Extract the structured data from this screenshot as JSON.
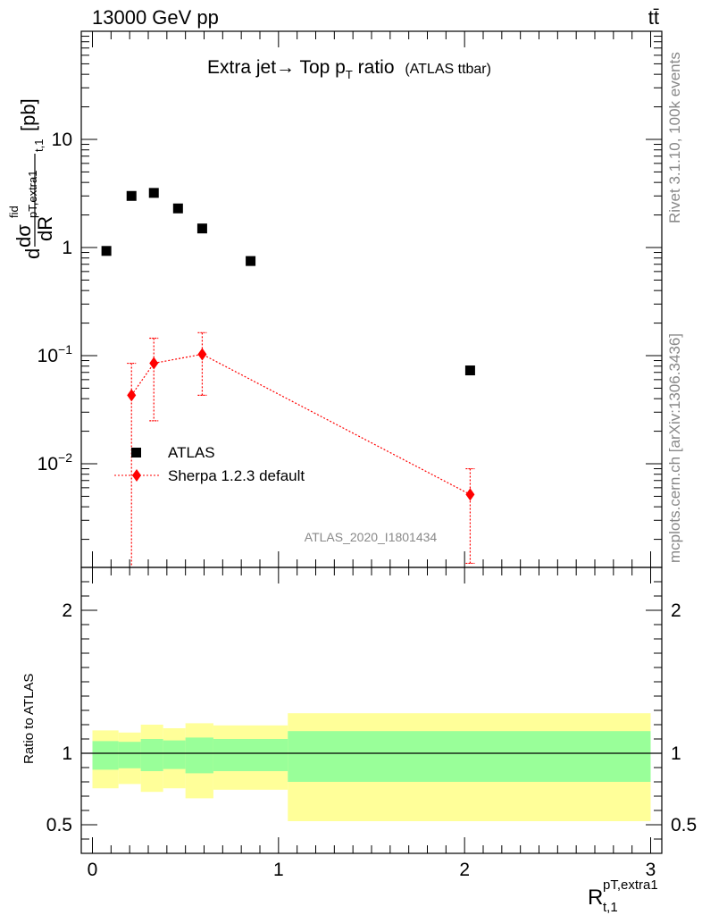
{
  "header": {
    "left": "13000 GeV pp",
    "right": "tt̄"
  },
  "side": {
    "rivet": "Rivet 3.1.10,  100k events",
    "mcplots": "mcplots.cern.ch [arXiv:1306.3436]"
  },
  "main": {
    "title": "Extra jet",
    "title_arrow": "→",
    "title_mid": " Top p",
    "title_sub": "T",
    "title_end": " ratio",
    "title_tag": "(ATLAS ttbar)",
    "ylabel_d1": "d",
    "ylabel_sigma": "dσ",
    "ylabel_fid": "fid",
    "ylabel_ptsub": "pT,extra1",
    "ylabel_t1": "t,1",
    "ylabel_dR": "dR",
    "ylabel_unit": "[pb]",
    "analysis": "ATLAS_2020_I1801434",
    "yticks": [
      {
        "label": "10",
        "exp": "",
        "value": 10
      },
      {
        "label": "1",
        "exp": "",
        "value": 1
      },
      {
        "label": "10",
        "exp": "−1",
        "value": 0.1
      },
      {
        "label": "10",
        "exp": "−2",
        "value": 0.01
      }
    ]
  },
  "ratio": {
    "ylabel": "Ratio to ATLAS",
    "yticks": [
      {
        "label": "2",
        "value": 2
      },
      {
        "label": "1",
        "value": 1
      },
      {
        "label": "0.5",
        "value": 0.5
      }
    ]
  },
  "xaxis": {
    "label_main": "R",
    "label_sup": "pT,extra1",
    "label_sub": "t,1",
    "ticks": [
      {
        "label": "0",
        "value": 0
      },
      {
        "label": "1",
        "value": 1
      },
      {
        "label": "2",
        "value": 2
      },
      {
        "label": "3",
        "value": 3
      }
    ]
  },
  "legend": [
    {
      "name": "ATLAS",
      "color": "#000000",
      "marker": "square"
    },
    {
      "name": "Sherpa 1.2.3 default",
      "color": "#ff0000",
      "marker": "diamond"
    }
  ],
  "chart_data": [
    {
      "type": "scatter",
      "panel": "main",
      "scale": "log",
      "xlim": [
        -0.06,
        3.06
      ],
      "ylim": [
        0.0011,
        100
      ],
      "series": [
        {
          "name": "ATLAS",
          "x": [
            0.075,
            0.21,
            0.33,
            0.46,
            0.59,
            0.85,
            2.03
          ],
          "y": [
            0.93,
            3.0,
            3.2,
            2.3,
            1.5,
            0.75,
            0.073
          ]
        },
        {
          "name": "Sherpa 1.2.3 default",
          "x": [
            0.21,
            0.33,
            0.59,
            2.03
          ],
          "y": [
            0.043,
            0.085,
            0.103,
            0.0052
          ],
          "yerr_low": [
            0.0011,
            0.025,
            0.043,
            0.0012
          ],
          "yerr_high": [
            0.085,
            0.145,
            0.163,
            0.009
          ]
        }
      ]
    },
    {
      "type": "area",
      "panel": "ratio",
      "xlim": [
        -0.06,
        3.06
      ],
      "ylim": [
        0.3,
        2.3
      ],
      "reference": 1,
      "bins": [
        {
          "lo": 0.0,
          "hi": 0.14,
          "stat_lo": 0.885,
          "stat_hi": 1.085,
          "tot_lo": 0.755,
          "tot_hi": 1.16
        },
        {
          "lo": 0.14,
          "hi": 0.26,
          "stat_lo": 0.895,
          "stat_hi": 1.08,
          "tot_lo": 0.785,
          "tot_hi": 1.145
        },
        {
          "lo": 0.26,
          "hi": 0.38,
          "stat_lo": 0.875,
          "stat_hi": 1.1,
          "tot_lo": 0.73,
          "tot_hi": 1.2
        },
        {
          "lo": 0.38,
          "hi": 0.5,
          "stat_lo": 0.89,
          "stat_hi": 1.09,
          "tot_lo": 0.755,
          "tot_hi": 1.175
        },
        {
          "lo": 0.5,
          "hi": 0.65,
          "stat_lo": 0.86,
          "stat_hi": 1.11,
          "tot_lo": 0.685,
          "tot_hi": 1.21
        },
        {
          "lo": 0.65,
          "hi": 1.05,
          "stat_lo": 0.875,
          "stat_hi": 1.1,
          "tot_lo": 0.745,
          "tot_hi": 1.195
        },
        {
          "lo": 1.05,
          "hi": 3.0,
          "stat_lo": 0.8,
          "stat_hi": 1.155,
          "tot_lo": 0.525,
          "tot_hi": 1.28
        }
      ],
      "stat_color": "#99ff99",
      "tot_color": "#ffff99"
    }
  ]
}
